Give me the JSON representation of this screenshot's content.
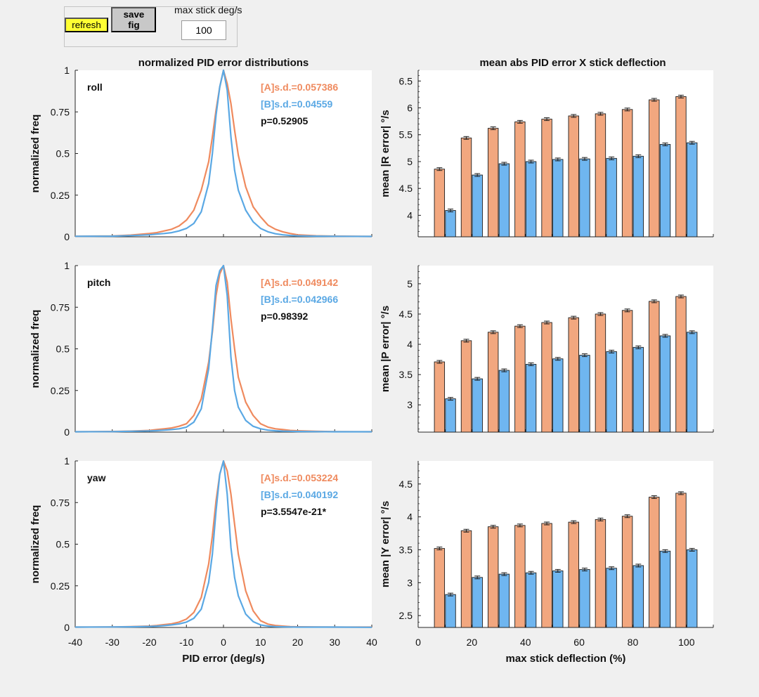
{
  "controls": {
    "refresh_label": "refresh",
    "savefig_label": "save fig",
    "maxstick_label": "max stick deg/s",
    "maxstick_value": "100"
  },
  "colors": {
    "A": "#ef8a5e",
    "B": "#5aa8e4",
    "barA": "#f2a77f",
    "barB": "#6fb6f0"
  },
  "chart_data": [
    {
      "type": "line",
      "axis": "roll",
      "title": "normalized PID error distributions",
      "ylabel": "normalized freq",
      "xlabel": "",
      "xlim": [
        -40,
        40
      ],
      "ylim": [
        0,
        1
      ],
      "xticks": [],
      "yticks": [
        "0",
        "0.25",
        "0.5",
        "0.75",
        "1"
      ],
      "annotations": {
        "label": "roll",
        "sdA": "[A]s.d.=0.057386",
        "sdB": "[B]s.d.=0.04559",
        "p": "p=0.52905"
      },
      "series": [
        {
          "name": "A",
          "x": [
            -40,
            -30,
            -25,
            -20,
            -18,
            -16,
            -14,
            -12,
            -10,
            -8,
            -6,
            -4,
            -3,
            -2,
            -1,
            0,
            1,
            2,
            3,
            4,
            6,
            8,
            10,
            12,
            14,
            16,
            18,
            20,
            25,
            30,
            40
          ],
          "values": [
            0.003,
            0.005,
            0.01,
            0.02,
            0.025,
            0.035,
            0.045,
            0.065,
            0.1,
            0.16,
            0.28,
            0.45,
            0.6,
            0.76,
            0.9,
            1.0,
            0.92,
            0.8,
            0.64,
            0.49,
            0.3,
            0.18,
            0.12,
            0.07,
            0.045,
            0.03,
            0.02,
            0.012,
            0.006,
            0.004,
            0.002
          ]
        },
        {
          "name": "B",
          "x": [
            -40,
            -30,
            -25,
            -20,
            -18,
            -16,
            -14,
            -12,
            -10,
            -8,
            -6,
            -4,
            -3,
            -2,
            -1,
            0,
            1,
            2,
            3,
            4,
            6,
            8,
            10,
            12,
            14,
            16,
            18,
            20,
            25,
            30,
            40
          ],
          "values": [
            0.003,
            0.004,
            0.007,
            0.012,
            0.016,
            0.02,
            0.025,
            0.035,
            0.05,
            0.08,
            0.15,
            0.32,
            0.5,
            0.73,
            0.9,
            1.0,
            0.88,
            0.6,
            0.4,
            0.28,
            0.16,
            0.09,
            0.05,
            0.03,
            0.018,
            0.012,
            0.008,
            0.006,
            0.004,
            0.003,
            0.002
          ]
        }
      ]
    },
    {
      "type": "line",
      "axis": "pitch",
      "title": "",
      "ylabel": "normalized freq",
      "xlabel": "",
      "xlim": [
        -40,
        40
      ],
      "ylim": [
        0,
        1
      ],
      "xticks": [],
      "yticks": [
        "0",
        "0.25",
        "0.5",
        "0.75",
        "1"
      ],
      "annotations": {
        "label": "pitch",
        "sdA": "[A]s.d.=0.049142",
        "sdB": "[B]s.d.=0.042966",
        "p": "p=0.98392"
      },
      "series": [
        {
          "name": "A",
          "x": [
            -40,
            -30,
            -25,
            -20,
            -18,
            -16,
            -14,
            -12,
            -10,
            -8,
            -6,
            -4,
            -3,
            -2,
            -1,
            0,
            1,
            2,
            3,
            4,
            6,
            8,
            10,
            12,
            14,
            16,
            18,
            20,
            25,
            30,
            40
          ],
          "values": [
            0.002,
            0.004,
            0.006,
            0.01,
            0.015,
            0.02,
            0.025,
            0.035,
            0.05,
            0.1,
            0.2,
            0.42,
            0.6,
            0.82,
            0.95,
            1.0,
            0.9,
            0.68,
            0.5,
            0.33,
            0.18,
            0.1,
            0.05,
            0.03,
            0.02,
            0.015,
            0.01,
            0.008,
            0.005,
            0.003,
            0.002
          ]
        },
        {
          "name": "B",
          "x": [
            -40,
            -30,
            -25,
            -20,
            -18,
            -16,
            -14,
            -12,
            -10,
            -8,
            -6,
            -4,
            -3,
            -2,
            -1,
            0,
            1,
            2,
            3,
            4,
            6,
            8,
            10,
            12,
            14,
            16,
            18,
            20,
            25,
            30,
            40
          ],
          "values": [
            0.002,
            0.003,
            0.005,
            0.007,
            0.009,
            0.012,
            0.015,
            0.02,
            0.03,
            0.06,
            0.14,
            0.38,
            0.62,
            0.88,
            0.97,
            1.0,
            0.82,
            0.45,
            0.25,
            0.15,
            0.07,
            0.035,
            0.02,
            0.012,
            0.008,
            0.006,
            0.005,
            0.004,
            0.003,
            0.002,
            0.002
          ]
        }
      ]
    },
    {
      "type": "line",
      "axis": "yaw",
      "title": "",
      "ylabel": "normalized freq",
      "xlabel": "PID error (deg/s)",
      "xlim": [
        -40,
        40
      ],
      "ylim": [
        0,
        1
      ],
      "xticks": [
        "-40",
        "-30",
        "-20",
        "-10",
        "0",
        "10",
        "20",
        "30",
        "40"
      ],
      "yticks": [
        "0",
        "0.25",
        "0.5",
        "0.75",
        "1"
      ],
      "annotations": {
        "label": "yaw",
        "sdA": "[A]s.d.=0.053224",
        "sdB": "[B]s.d.=0.040192",
        "p": "p=3.5547e-21*"
      },
      "series": [
        {
          "name": "A",
          "x": [
            -40,
            -30,
            -25,
            -20,
            -18,
            -16,
            -14,
            -12,
            -10,
            -8,
            -6,
            -4,
            -3,
            -2,
            -1,
            0,
            1,
            2,
            3,
            4,
            6,
            8,
            10,
            12,
            14,
            16,
            18,
            20,
            25,
            30,
            40
          ],
          "values": [
            0.002,
            0.003,
            0.005,
            0.008,
            0.012,
            0.017,
            0.022,
            0.032,
            0.05,
            0.09,
            0.18,
            0.38,
            0.55,
            0.76,
            0.92,
            1.0,
            0.94,
            0.8,
            0.62,
            0.44,
            0.22,
            0.1,
            0.04,
            0.02,
            0.012,
            0.008,
            0.005,
            0.004,
            0.003,
            0.002,
            0.002
          ]
        },
        {
          "name": "B",
          "x": [
            -40,
            -30,
            -25,
            -20,
            -18,
            -16,
            -14,
            -12,
            -10,
            -8,
            -6,
            -4,
            -3,
            -2,
            -1,
            0,
            1,
            2,
            3,
            4,
            6,
            8,
            10,
            12,
            14,
            16,
            18,
            20,
            25,
            30,
            40
          ],
          "values": [
            0.002,
            0.003,
            0.004,
            0.006,
            0.008,
            0.011,
            0.015,
            0.021,
            0.032,
            0.055,
            0.11,
            0.27,
            0.44,
            0.7,
            0.92,
            1.0,
            0.8,
            0.48,
            0.3,
            0.19,
            0.08,
            0.035,
            0.015,
            0.008,
            0.005,
            0.004,
            0.003,
            0.002,
            0.002,
            0.002,
            0.001
          ]
        }
      ]
    },
    {
      "type": "bar",
      "axis": "roll",
      "title": "mean abs PID error X stick deflection",
      "ylabel": "mean |R error| °/s",
      "xlabel": "",
      "xlim": [
        0,
        110
      ],
      "ylim": [
        3.6,
        6.7
      ],
      "yticks": [
        4,
        4.5,
        5,
        5.5,
        6,
        6.5
      ],
      "xticks": [],
      "categories": [
        10,
        20,
        30,
        40,
        50,
        60,
        70,
        80,
        90,
        100
      ],
      "series": [
        {
          "name": "A",
          "values": [
            4.86,
            5.44,
            5.62,
            5.74,
            5.79,
            5.85,
            5.89,
            5.97,
            6.15,
            6.21
          ]
        },
        {
          "name": "B",
          "values": [
            4.09,
            4.75,
            4.96,
            5.0,
            5.04,
            5.05,
            5.06,
            5.1,
            5.32,
            5.35
          ]
        }
      ]
    },
    {
      "type": "bar",
      "axis": "pitch",
      "title": "",
      "ylabel": "mean |P error| °/s",
      "xlabel": "",
      "xlim": [
        0,
        110
      ],
      "ylim": [
        2.55,
        5.3
      ],
      "yticks": [
        3,
        3.5,
        4,
        4.5,
        5
      ],
      "xticks": [],
      "categories": [
        10,
        20,
        30,
        40,
        50,
        60,
        70,
        80,
        90,
        100
      ],
      "series": [
        {
          "name": "A",
          "values": [
            3.71,
            4.06,
            4.2,
            4.3,
            4.36,
            4.44,
            4.5,
            4.56,
            4.71,
            4.79
          ]
        },
        {
          "name": "B",
          "values": [
            3.1,
            3.43,
            3.57,
            3.67,
            3.76,
            3.82,
            3.88,
            3.95,
            4.14,
            4.2
          ]
        }
      ]
    },
    {
      "type": "bar",
      "axis": "yaw",
      "title": "",
      "ylabel": "mean |Y error| °/s",
      "xlabel": "max stick deflection (%)",
      "xlim": [
        0,
        110
      ],
      "ylim": [
        2.32,
        4.85
      ],
      "yticks": [
        2.5,
        3,
        3.5,
        4,
        4.5
      ],
      "xticks": [
        "0",
        "20",
        "40",
        "60",
        "80",
        "100"
      ],
      "categories": [
        10,
        20,
        30,
        40,
        50,
        60,
        70,
        80,
        90,
        100
      ],
      "series": [
        {
          "name": "A",
          "values": [
            3.52,
            3.79,
            3.85,
            3.87,
            3.9,
            3.92,
            3.96,
            4.01,
            4.3,
            4.36
          ]
        },
        {
          "name": "B",
          "values": [
            2.82,
            3.08,
            3.13,
            3.15,
            3.18,
            3.2,
            3.22,
            3.26,
            3.48,
            3.5
          ]
        }
      ]
    }
  ]
}
